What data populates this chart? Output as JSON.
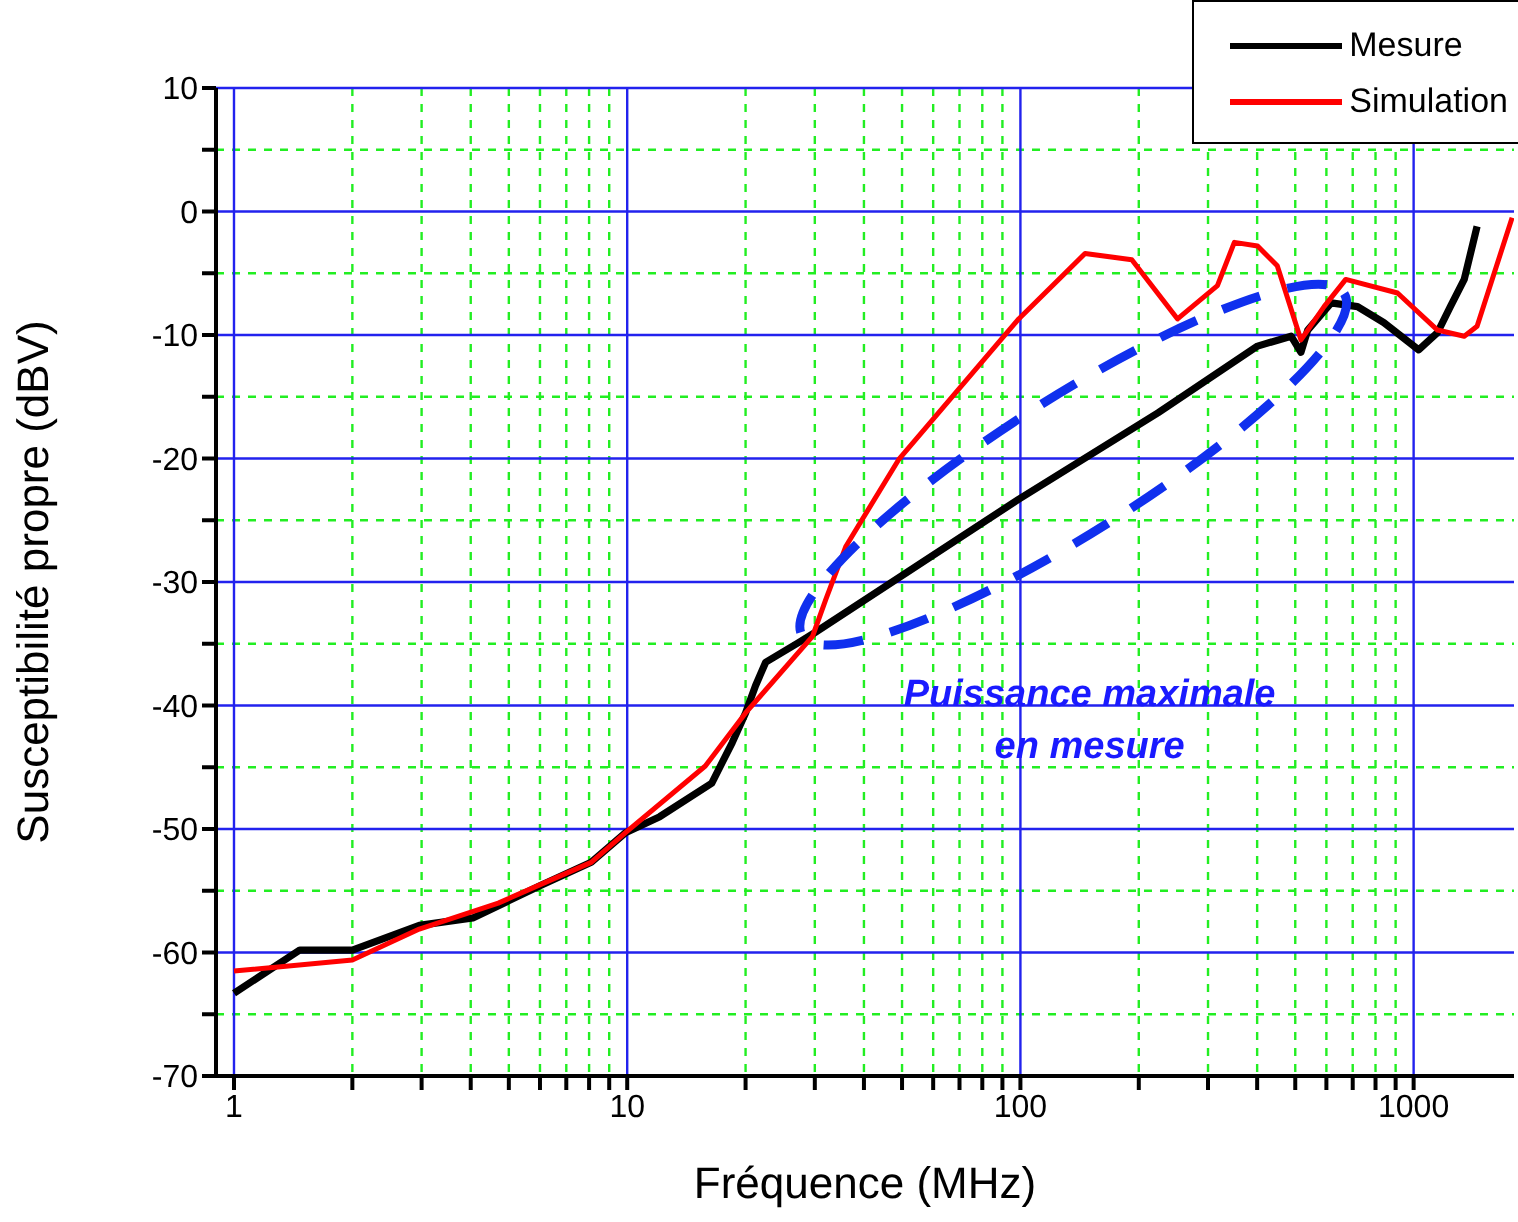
{
  "chart_data": {
    "type": "line",
    "xlabel": "Fréquence (MHz)",
    "ylabel": "Susceptibilité propre (dBV)",
    "log": "x",
    "grid": true,
    "legend": "top right",
    "line_style": "solid",
    "xlim": [
      0.9,
      1800
    ],
    "xticks": [
      1,
      {
        "value": 2,
        "label": null
      },
      {
        "value": 3,
        "label": null
      },
      {
        "value": 4,
        "label": null
      },
      {
        "value": 5,
        "label": null
      },
      {
        "value": 6,
        "label": null
      },
      {
        "value": 7,
        "label": null
      },
      {
        "value": 8,
        "label": null
      },
      {
        "value": 9,
        "label": null
      },
      10,
      {
        "value": 20,
        "label": null
      },
      {
        "value": 30,
        "label": null
      },
      {
        "value": 40,
        "label": null
      },
      {
        "value": 50,
        "label": null
      },
      {
        "value": 60,
        "label": null
      },
      {
        "value": 70,
        "label": null
      },
      {
        "value": 80,
        "label": null
      },
      {
        "value": 90,
        "label": null
      },
      100,
      {
        "value": 200,
        "label": null
      },
      {
        "value": 300,
        "label": null
      },
      {
        "value": 400,
        "label": null
      },
      {
        "value": 500,
        "label": null
      },
      {
        "value": 600,
        "label": null
      },
      {
        "value": 700,
        "label": null
      },
      {
        "value": 800,
        "label": null
      },
      {
        "value": 900,
        "label": null
      },
      1000
    ],
    "ylim": [
      -70,
      10
    ],
    "yticks": [
      -70,
      {
        "value": -65,
        "label": null
      },
      -60,
      {
        "value": -55,
        "label": null
      },
      -50,
      {
        "value": -45,
        "label": null
      },
      -40,
      {
        "value": -35,
        "label": null
      },
      -30,
      {
        "value": -25,
        "label": null
      },
      -20,
      {
        "value": -15,
        "label": null
      },
      -10,
      {
        "value": -5,
        "label": null
      },
      0,
      {
        "value": 5,
        "label": null
      },
      10
    ],
    "series": [
      {
        "name": "Mesure",
        "color": "#000000",
        "x": [
          1,
          1.47,
          2,
          2.96,
          4.05,
          6,
          8.1,
          9.9,
          12.1,
          16.4,
          18.5,
          20,
          21.2,
          22.5,
          27.3,
          30,
          99,
          224,
          401,
          488,
          517,
          538,
          617,
          720,
          840,
          1030,
          1150,
          1240,
          1345,
          1450
        ],
        "values": [
          -63.3,
          -59.8,
          -59.8,
          -57.8,
          -57.2,
          -54.6,
          -52.7,
          -50.3,
          -49,
          -46.3,
          -43,
          -40.6,
          -38.4,
          -36.5,
          -34.9,
          -34.1,
          -23.3,
          -16.3,
          -10.9,
          -10.1,
          -11.4,
          -9.6,
          -7.4,
          -7.7,
          -9,
          -11.2,
          -9.8,
          -7.7,
          -5.5,
          -1.2
        ]
      },
      {
        "name": "Simulation",
        "color": "#ff0000",
        "x": [
          1,
          2,
          2.96,
          4.7,
          8.1,
          9.9,
          15.8,
          20,
          29.6,
          32,
          36,
          49,
          99,
          146,
          192,
          251,
          317,
          350,
          401,
          450,
          517,
          592,
          672,
          910,
          1150,
          1345,
          1450,
          1780
        ],
        "values": [
          -61.5,
          -60.6,
          -58.1,
          -56,
          -52.7,
          -50.3,
          -44.9,
          -40.6,
          -34.4,
          -31.4,
          -27.1,
          -20.1,
          -8.7,
          -3.4,
          -3.9,
          -8.7,
          -6,
          -2.5,
          -2.8,
          -4.4,
          -10.4,
          -7.7,
          -5.5,
          -6.6,
          -9.6,
          -10.1,
          -9.3,
          -0.5
        ]
      }
    ],
    "annotations": [
      "Puissance maximale en mesure"
    ]
  }
}
